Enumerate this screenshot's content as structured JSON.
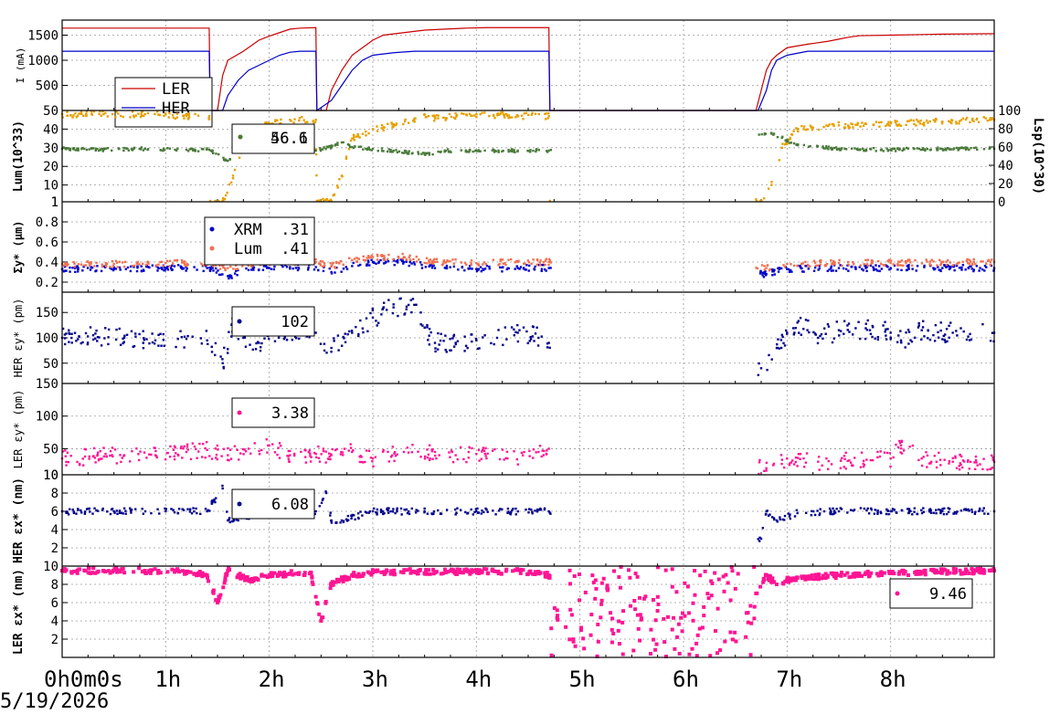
{
  "date": "5/19/2026",
  "chart_data": [
    {
      "type": "line",
      "ylabel": "I (mA)",
      "ylim": [
        0,
        1800
      ],
      "yticks": [
        500,
        1000,
        1500
      ],
      "series": [
        {
          "name": "LER",
          "color": "#cc0000",
          "x": [
            0,
            1.0,
            1.42,
            1.43,
            1.5,
            1.55,
            1.6,
            1.75,
            1.9,
            2.0,
            2.1,
            2.2,
            2.3,
            2.45,
            2.46,
            2.55,
            2.6,
            2.7,
            2.8,
            2.9,
            3.0,
            3.1,
            3.3,
            3.5,
            3.7,
            3.9,
            4.1,
            4.3,
            4.55,
            4.7,
            4.71,
            6.7,
            6.75,
            6.8,
            6.85,
            6.9,
            7.0,
            7.2,
            7.4,
            7.5,
            7.6,
            7.7,
            8.0,
            8.5,
            9.0
          ],
          "y": [
            1640,
            1640,
            1640,
            0,
            0,
            700,
            1000,
            1180,
            1400,
            1480,
            1550,
            1620,
            1640,
            1650,
            0,
            0,
            400,
            800,
            1100,
            1250,
            1400,
            1500,
            1550,
            1600,
            1620,
            1640,
            1650,
            1650,
            1650,
            1650,
            0,
            0,
            400,
            800,
            1000,
            1100,
            1250,
            1320,
            1380,
            1420,
            1460,
            1490,
            1500,
            1520,
            1530
          ]
        },
        {
          "name": "HER",
          "color": "#0000cc",
          "x": [
            0,
            1.42,
            1.43,
            1.55,
            1.6,
            1.7,
            1.8,
            1.9,
            2.0,
            2.1,
            2.2,
            2.3,
            2.45,
            2.46,
            2.6,
            2.7,
            2.8,
            2.9,
            3.0,
            3.2,
            3.4,
            3.6,
            4.7,
            4.71,
            6.72,
            6.8,
            6.85,
            6.9,
            7.0,
            7.2,
            9.0
          ],
          "y": [
            1180,
            1180,
            0,
            0,
            300,
            600,
            800,
            900,
            1000,
            1100,
            1160,
            1180,
            1180,
            0,
            200,
            500,
            800,
            1000,
            1100,
            1150,
            1180,
            1180,
            1180,
            0,
            0,
            400,
            800,
            1000,
            1100,
            1180,
            1180
          ]
        }
      ]
    },
    {
      "type": "scatter",
      "ylabel": "Lum(10^33)",
      "y2label": "Lsp(10^30)",
      "ylim": [
        1,
        50
      ],
      "yticks": [
        1,
        10,
        20,
        30,
        40,
        50
      ],
      "y2lim": [
        0,
        100
      ],
      "y2ticks": [
        0,
        20,
        40,
        60,
        80,
        100
      ],
      "series": [
        {
          "name": "Lum",
          "color": "#e6a000",
          "value": "56.6",
          "x": [
            0,
            0.4,
            0.8,
            1.2,
            1.42,
            1.43,
            1.55,
            1.65,
            1.75,
            1.85,
            2.0,
            2.2,
            2.45,
            2.46,
            2.6,
            2.7,
            2.8,
            3.0,
            3.2,
            3.4,
            3.5,
            3.6,
            4.0,
            4.4,
            4.7,
            4.71,
            6.75,
            6.85,
            6.95,
            7.1,
            7.5,
            8.0,
            8.5,
            9.0
          ],
          "y": [
            48,
            48,
            48,
            47,
            47,
            1,
            1,
            15,
            30,
            40,
            43,
            45,
            45,
            1,
            1,
            15,
            35,
            40,
            42,
            45,
            48,
            46,
            48,
            47,
            47,
            1,
            1,
            10,
            30,
            40,
            42,
            43,
            44,
            45
          ]
        },
        {
          "name": "Lsp",
          "color": "#4a7a3a",
          "value": "46.1",
          "x": [
            0,
            0.4,
            0.8,
            1.2,
            1.42,
            1.6,
            1.7,
            1.8,
            2.0,
            2.2,
            2.45,
            2.6,
            2.7,
            2.8,
            3.0,
            3.2,
            3.5,
            3.7,
            4.0,
            4.4,
            4.7,
            6.85,
            6.95,
            7.1,
            7.5,
            8.0,
            8.5,
            9.0
          ],
          "y": [
            58,
            57,
            58,
            57,
            57,
            45,
            55,
            60,
            58,
            57,
            56,
            60,
            65,
            60,
            58,
            56,
            52,
            56,
            56,
            56,
            56,
            75,
            70,
            62,
            58,
            57,
            58,
            58
          ]
        }
      ]
    },
    {
      "type": "scatter",
      "ylabel": "Σy* (μm)",
      "ylim": [
        0.1,
        1.0
      ],
      "yticks": [
        0.2,
        0.4,
        0.6,
        0.8,
        1
      ],
      "series": [
        {
          "name": "XRM",
          "color": "#0000cc",
          "value": ".31",
          "x": [
            0,
            0.5,
            1.0,
            1.4,
            1.6,
            1.8,
            2.0,
            2.2,
            2.45,
            2.6,
            2.8,
            3.0,
            3.3,
            3.6,
            4.0,
            4.4,
            4.7,
            6.8,
            7.0,
            7.5,
            8.0,
            8.5,
            9.0
          ],
          "y": [
            0.33,
            0.33,
            0.34,
            0.34,
            0.26,
            0.32,
            0.34,
            0.35,
            0.35,
            0.3,
            0.36,
            0.4,
            0.4,
            0.34,
            0.33,
            0.34,
            0.34,
            0.28,
            0.33,
            0.34,
            0.34,
            0.34,
            0.34
          ]
        },
        {
          "name": "Lum",
          "color": "#f07050",
          "value": ".41",
          "x": [
            0,
            0.5,
            1.0,
            1.4,
            1.6,
            1.8,
            2.0,
            2.2,
            2.45,
            2.6,
            2.8,
            3.0,
            3.3,
            3.6,
            4.0,
            4.4,
            4.7,
            6.8,
            7.0,
            7.5,
            8.0,
            8.5,
            9.0
          ],
          "y": [
            0.38,
            0.38,
            0.39,
            0.39,
            0.34,
            0.38,
            0.4,
            0.4,
            0.4,
            0.36,
            0.42,
            0.45,
            0.45,
            0.4,
            0.39,
            0.4,
            0.4,
            0.34,
            0.38,
            0.39,
            0.39,
            0.4,
            0.4
          ]
        }
      ]
    },
    {
      "type": "scatter",
      "ylabel": "HER εy* (pm)",
      "ylim": [
        10,
        190
      ],
      "yticks": [
        50,
        100,
        150
      ],
      "series": [
        {
          "name": "HER εy*",
          "color": "#00008b",
          "value": "102",
          "x": [
            0,
            0.3,
            0.6,
            0.9,
            1.2,
            1.4,
            1.55,
            1.65,
            1.75,
            1.9,
            2.0,
            2.2,
            2.45,
            2.6,
            2.8,
            3.0,
            3.2,
            3.4,
            3.5,
            3.6,
            3.8,
            4.0,
            4.2,
            4.4,
            4.6,
            4.7,
            6.75,
            6.9,
            7.0,
            7.1,
            7.3,
            7.5,
            7.8,
            8.0,
            8.1,
            8.3,
            8.6,
            9.0
          ],
          "y": [
            100,
            105,
            100,
            95,
            98,
            95,
            50,
            125,
            100,
            90,
            110,
            115,
            110,
            80,
            110,
            140,
            160,
            165,
            120,
            90,
            90,
            95,
            100,
            110,
            100,
            90,
            40,
            80,
            110,
            130,
            100,
            115,
            115,
            110,
            95,
            115,
            110,
            110
          ]
        }
      ]
    },
    {
      "type": "scatter",
      "ylabel": "LER εy* (pm)",
      "ylim": [
        10,
        150
      ],
      "yticks": [
        10,
        50,
        100,
        150
      ],
      "series": [
        {
          "name": "LER εy*",
          "color": "#ff1493",
          "value": "3.38",
          "x": [
            0,
            0.3,
            0.6,
            0.9,
            1.2,
            1.4,
            1.6,
            1.8,
            2.0,
            2.2,
            2.45,
            2.6,
            2.8,
            3.0,
            3.3,
            3.6,
            3.8,
            4.0,
            4.3,
            4.6,
            4.7,
            6.8,
            7.0,
            7.3,
            7.6,
            8.0,
            8.1,
            8.3,
            8.6,
            9.0
          ],
          "y": [
            35,
            38,
            40,
            40,
            45,
            48,
            40,
            50,
            55,
            40,
            42,
            40,
            45,
            35,
            45,
            45,
            40,
            42,
            35,
            45,
            50,
            20,
            35,
            30,
            32,
            35,
            55,
            35,
            30,
            30
          ]
        }
      ]
    },
    {
      "type": "scatter",
      "ylabel": "HER εx* (nm)",
      "ylim": [
        0,
        10
      ],
      "yticks": [
        2,
        4,
        6,
        8,
        10
      ],
      "series": [
        {
          "name": "HER εx*",
          "color": "#00008b",
          "value": "6.08",
          "x": [
            0,
            0.5,
            1.0,
            1.4,
            1.55,
            1.6,
            1.7,
            1.9,
            2.2,
            2.45,
            2.55,
            2.6,
            2.7,
            3.0,
            3.5,
            4.0,
            4.7,
            6.75,
            6.8,
            6.9,
            7.1,
            7.5,
            8.0,
            8.5,
            9.0
          ],
          "y": [
            6.0,
            6.0,
            6.0,
            6.0,
            8.5,
            5.0,
            5.0,
            5.5,
            6.0,
            6.0,
            8.0,
            5.0,
            5.0,
            6.0,
            6.0,
            6.0,
            6.0,
            3.0,
            6.0,
            5.0,
            5.8,
            6.0,
            6.0,
            6.0,
            6.0
          ]
        }
      ]
    },
    {
      "type": "scatter",
      "ylabel": "LER εx* (nm)",
      "ylim": [
        0,
        10
      ],
      "yticks": [
        2,
        4,
        6,
        8,
        10
      ],
      "series": [
        {
          "name": "LER εx*",
          "color": "#ff1493",
          "value": "9.46",
          "x": [
            0,
            0.4,
            0.8,
            1.2,
            1.4,
            1.5,
            1.6,
            1.7,
            1.8,
            2.0,
            2.2,
            2.4,
            2.5,
            2.6,
            2.7,
            2.8,
            3.0,
            3.4,
            3.8,
            4.2,
            4.6,
            4.7,
            6.7,
            6.8,
            6.9,
            7.0,
            7.5,
            8.0,
            8.5,
            9.0
          ],
          "y": [
            9.5,
            9.5,
            9.5,
            9.4,
            9.0,
            6.0,
            9.5,
            9.0,
            8.5,
            9.0,
            9.2,
            9.3,
            4.0,
            8.0,
            8.5,
            9.0,
            9.3,
            9.4,
            9.4,
            9.4,
            9.4,
            9.0,
            7.0,
            9.0,
            8.0,
            8.5,
            9.0,
            9.2,
            9.4,
            9.5
          ]
        }
      ]
    }
  ],
  "xaxis": {
    "ticks": [
      "0h0m0s",
      "1h",
      "2h",
      "3h",
      "4h",
      "5h",
      "6h",
      "7h",
      "8h"
    ],
    "xlim": [
      0,
      9.0
    ]
  }
}
